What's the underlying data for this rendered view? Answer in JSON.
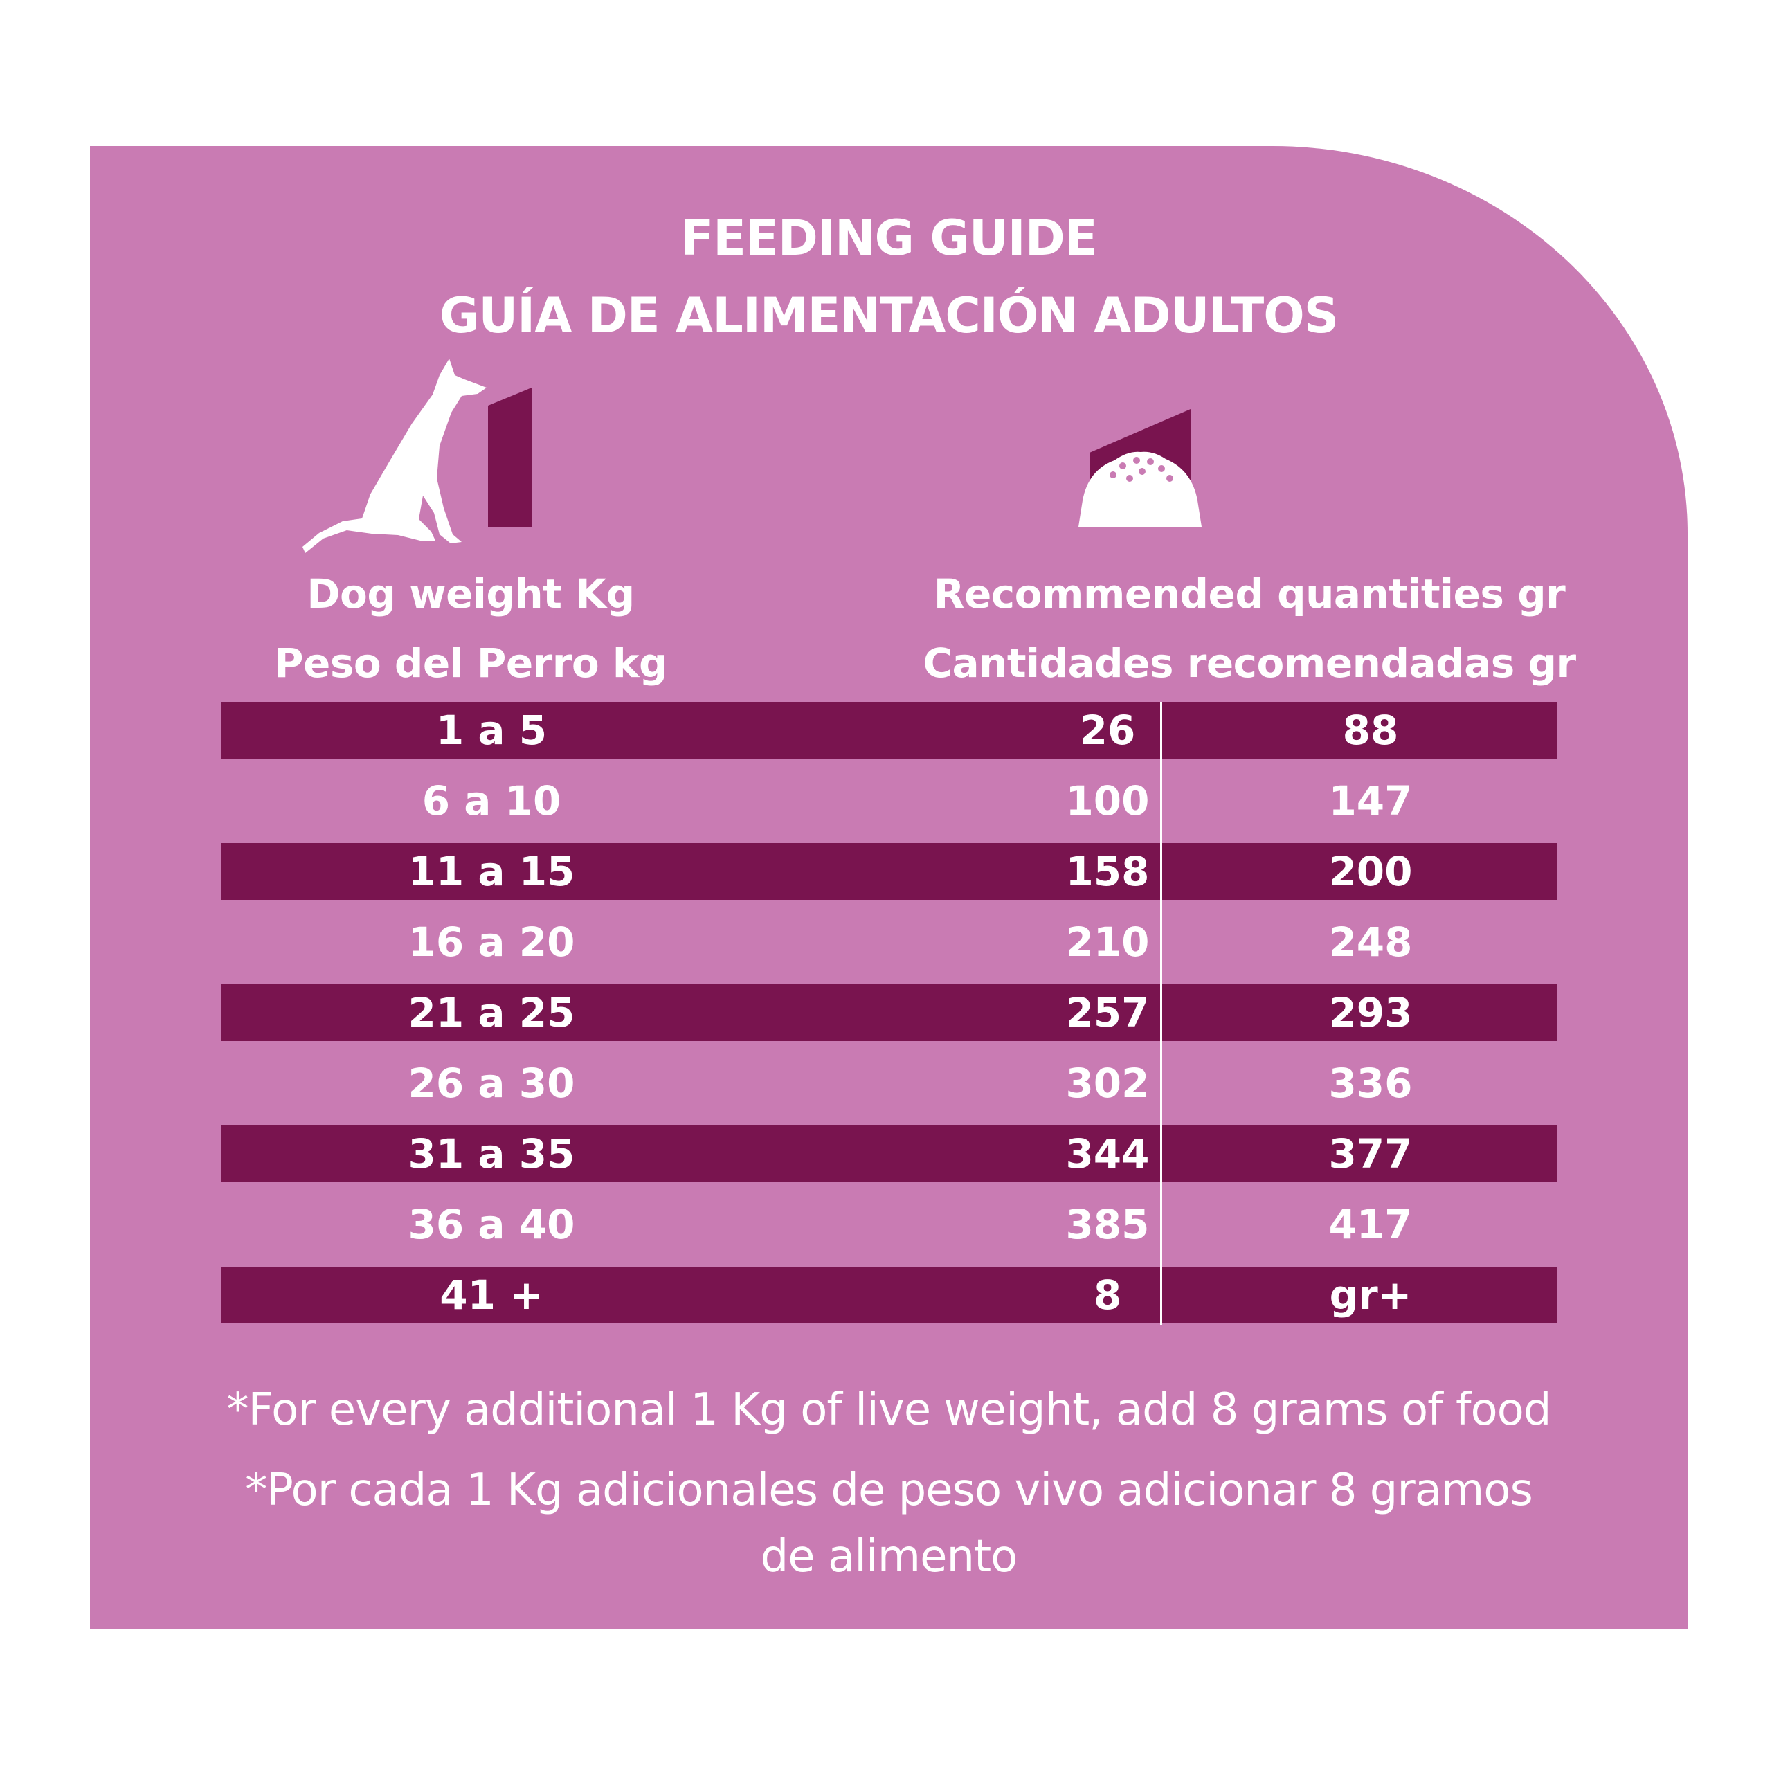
{
  "title": {
    "line1": "FEEDING GUIDE",
    "line2": "GUÍA DE ALIMENTACIÓN ADULTOS"
  },
  "icons": {
    "dog": "sitting-dog-icon",
    "bowl": "food-bowl-icon"
  },
  "headers": {
    "weight_en": "Dog weight Kg",
    "weight_es": "Peso del Perro kg",
    "quantity_en": "Recommended quantities gr",
    "quantity_es": "Cantidades recomendadas gr"
  },
  "rows": [
    {
      "weight": "1 a 5",
      "min": "26",
      "max": "88"
    },
    {
      "weight": "6 a 10",
      "min": "100",
      "max": "147"
    },
    {
      "weight": "11 a 15",
      "min": "158",
      "max": "200"
    },
    {
      "weight": "16 a 20",
      "min": "210",
      "max": "248"
    },
    {
      "weight": "21 a 25",
      "min": "257",
      "max": "293"
    },
    {
      "weight": "26 a 30",
      "min": "302",
      "max": "336"
    },
    {
      "weight": "31 a 35",
      "min": "344",
      "max": "377"
    },
    {
      "weight": "36 a 40",
      "min": "385",
      "max": "417"
    },
    {
      "weight": "41 +",
      "min": "8",
      "max": "gr+"
    }
  ],
  "notes": {
    "en": "*For every additional 1 Kg of live weight, add 8 grams of food",
    "es_line1": "*Por cada 1 Kg adicionales de peso vivo adicionar 8 gramos",
    "es_line2": "de alimento"
  },
  "colors": {
    "background": "#c97bb3",
    "row_dark": "#79144f",
    "text": "#ffffff"
  }
}
